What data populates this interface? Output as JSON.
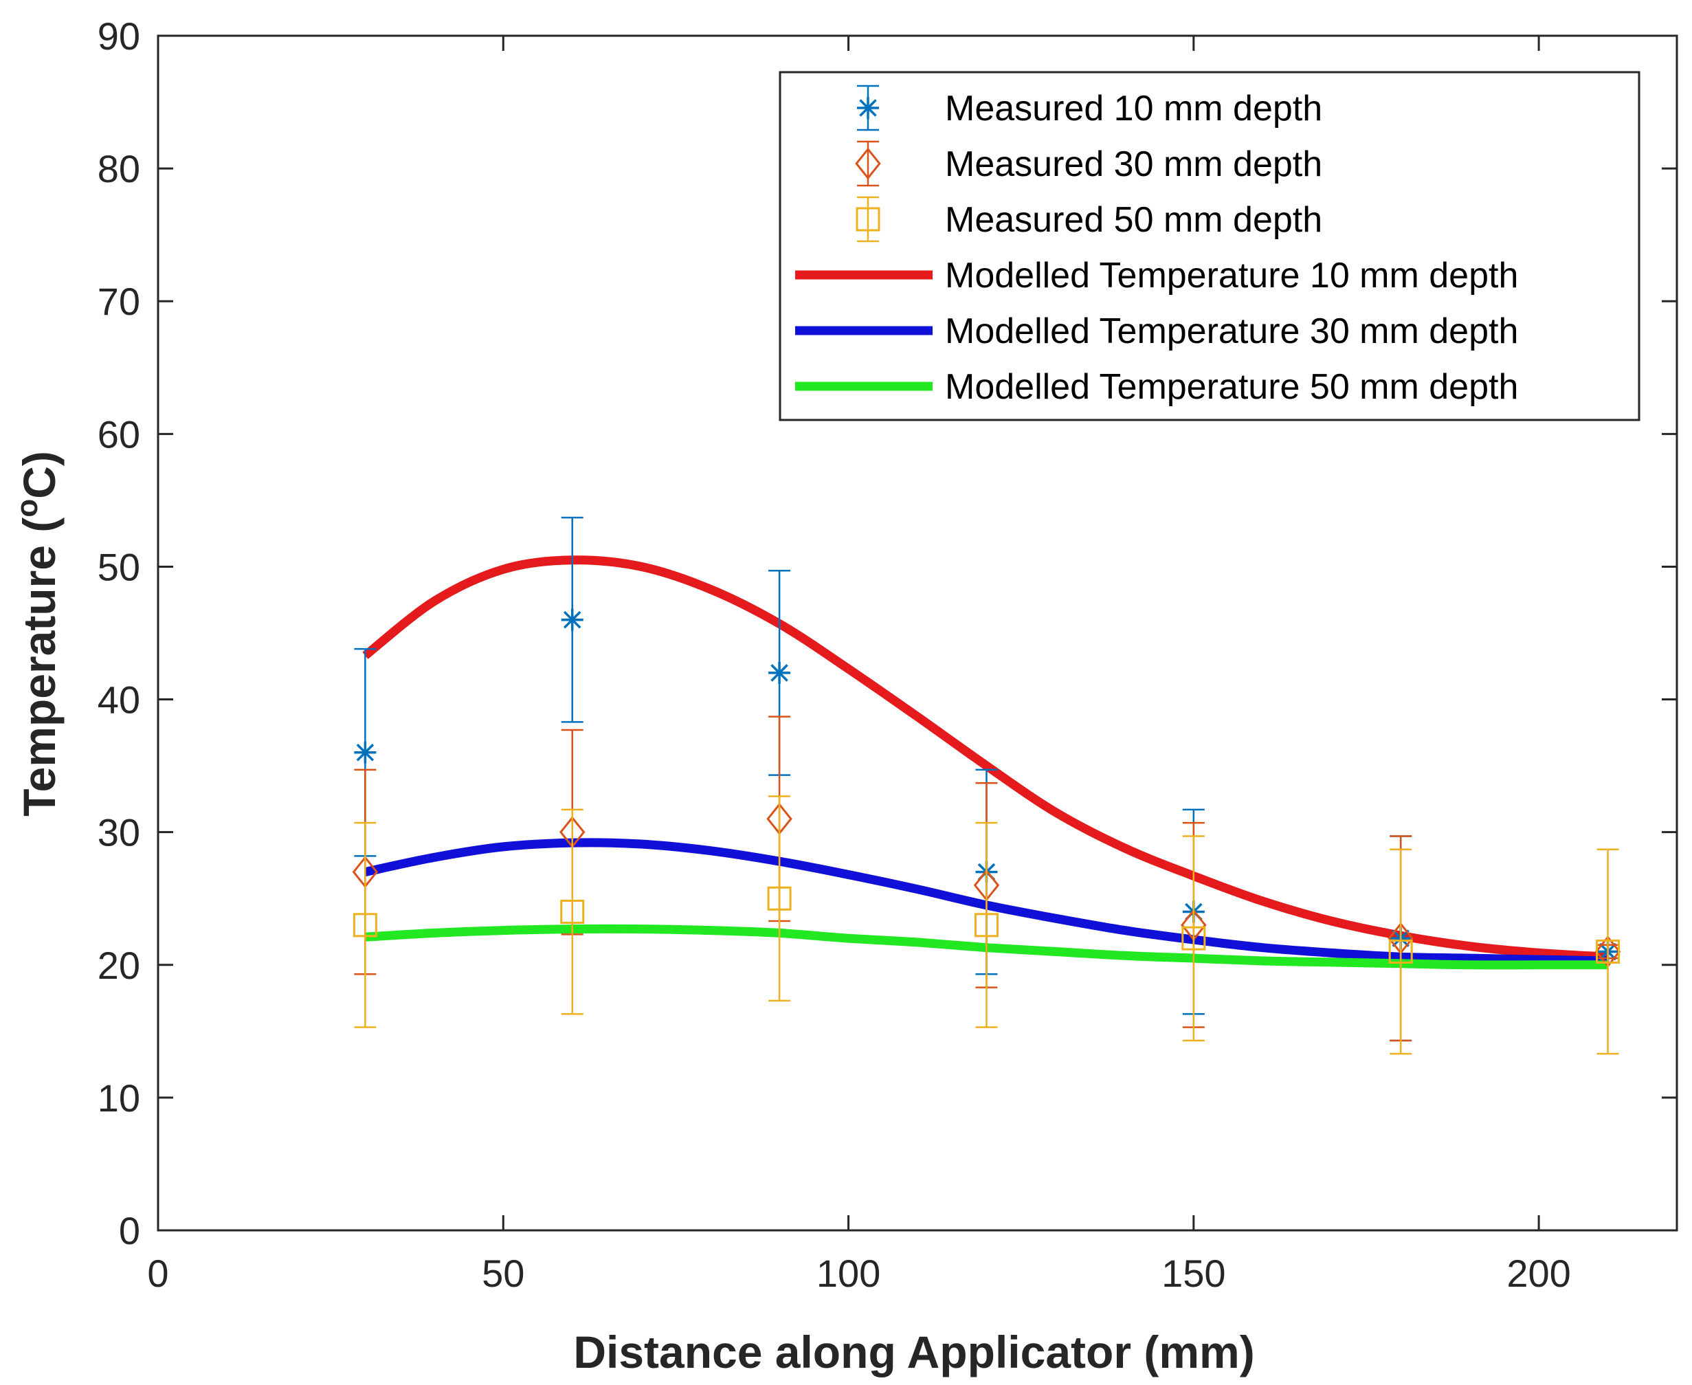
{
  "chart_data": {
    "type": "scatter",
    "title": "",
    "xlabel": "Distance along Applicator (mm)",
    "ylabel_main": "Temperature (",
    "ylabel_sup": "o",
    "ylabel_end": "C)",
    "xlim": [
      0,
      220
    ],
    "ylim": [
      0,
      90
    ],
    "xticks": [
      0,
      50,
      100,
      150,
      200
    ],
    "yticks": [
      0,
      10,
      20,
      30,
      40,
      50,
      60,
      70,
      80,
      90
    ],
    "grid": false,
    "legend_position": "top-right",
    "measured_series": [
      {
        "name": "Measured 10 mm depth",
        "color": "#0072BD",
        "marker": "asterisk",
        "points": [
          {
            "x": 30,
            "y": 36,
            "lo": 28.2,
            "hi": 43.8
          },
          {
            "x": 60,
            "y": 46,
            "lo": 38.3,
            "hi": 53.7
          },
          {
            "x": 90,
            "y": 42,
            "lo": 34.3,
            "hi": 49.7
          },
          {
            "x": 120,
            "y": 27,
            "lo": 19.3,
            "hi": 34.7
          },
          {
            "x": 150,
            "y": 24,
            "lo": 16.3,
            "hi": 31.7
          },
          {
            "x": 180,
            "y": 22,
            "lo": 14.3,
            "hi": 29.7
          },
          {
            "x": 210,
            "y": 21,
            "lo": 20.5,
            "hi": 21.5
          }
        ]
      },
      {
        "name": "Measured 30 mm depth",
        "color": "#D95319",
        "marker": "diamond",
        "points": [
          {
            "x": 30,
            "y": 27,
            "lo": 19.3,
            "hi": 34.7
          },
          {
            "x": 60,
            "y": 30,
            "lo": 22.3,
            "hi": 37.7
          },
          {
            "x": 90,
            "y": 31,
            "lo": 23.3,
            "hi": 38.7
          },
          {
            "x": 120,
            "y": 26,
            "lo": 18.3,
            "hi": 33.7
          },
          {
            "x": 150,
            "y": 23,
            "lo": 15.3,
            "hi": 30.7
          },
          {
            "x": 180,
            "y": 22,
            "lo": 14.3,
            "hi": 29.7
          },
          {
            "x": 210,
            "y": 21,
            "lo": 20.5,
            "hi": 21.5
          }
        ]
      },
      {
        "name": "Measured 50 mm depth",
        "color": "#EDB120",
        "marker": "square",
        "points": [
          {
            "x": 30,
            "y": 23,
            "lo": 15.3,
            "hi": 30.7
          },
          {
            "x": 60,
            "y": 24,
            "lo": 16.3,
            "hi": 31.7
          },
          {
            "x": 90,
            "y": 25,
            "lo": 17.3,
            "hi": 32.7
          },
          {
            "x": 120,
            "y": 23,
            "lo": 15.3,
            "hi": 30.7
          },
          {
            "x": 150,
            "y": 22,
            "lo": 14.3,
            "hi": 29.7
          },
          {
            "x": 180,
            "y": 21,
            "lo": 13.3,
            "hi": 28.7
          },
          {
            "x": 210,
            "y": 21,
            "lo": 13.3,
            "hi": 28.7
          }
        ]
      }
    ],
    "modelled_series": [
      {
        "name": "Modelled Temperature 10 mm depth",
        "color": "#E41A1C",
        "x": [
          30,
          40,
          50,
          60,
          70,
          80,
          90,
          100,
          110,
          120,
          130,
          140,
          150,
          160,
          170,
          180,
          190,
          200,
          210
        ],
        "y": [
          43.3,
          47.4,
          49.8,
          50.5,
          50.0,
          48.3,
          45.7,
          42.3,
          38.7,
          35.0,
          31.5,
          28.8,
          26.7,
          24.8,
          23.3,
          22.2,
          21.4,
          20.9,
          20.6
        ]
      },
      {
        "name": "Modelled Temperature 30 mm depth",
        "color": "#1010D8",
        "x": [
          30,
          40,
          50,
          60,
          70,
          80,
          90,
          100,
          110,
          120,
          130,
          140,
          150,
          160,
          170,
          180,
          190,
          200,
          210
        ],
        "y": [
          27.0,
          28.1,
          28.9,
          29.2,
          29.1,
          28.6,
          27.8,
          26.8,
          25.7,
          24.5,
          23.5,
          22.6,
          21.9,
          21.3,
          20.9,
          20.6,
          20.5,
          20.4,
          20.3
        ]
      },
      {
        "name": "Modelled Temperature 50 mm depth",
        "color": "#22E822",
        "x": [
          30,
          40,
          50,
          60,
          70,
          80,
          90,
          100,
          110,
          120,
          130,
          140,
          150,
          160,
          170,
          180,
          190,
          200,
          210
        ],
        "y": [
          22.1,
          22.4,
          22.6,
          22.7,
          22.7,
          22.6,
          22.4,
          22.0,
          21.7,
          21.3,
          21.0,
          20.7,
          20.5,
          20.3,
          20.2,
          20.1,
          20.0,
          20.0,
          20.0
        ]
      }
    ]
  }
}
